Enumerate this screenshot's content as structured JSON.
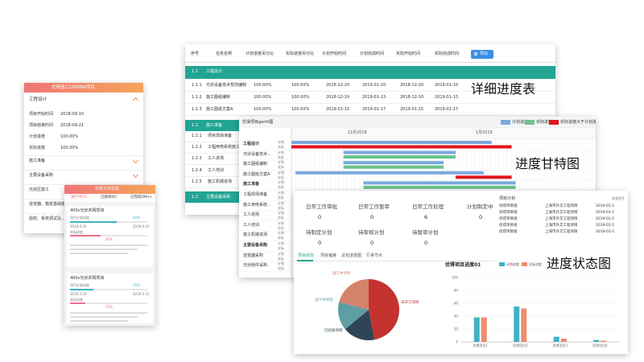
{
  "labels": {
    "table": "详细进度表",
    "gantt": "进度甘特图",
    "status": "进度状态图"
  },
  "mobile_project": {
    "title": "优得造口100MW项目",
    "section": "工程设计",
    "fields": [
      {
        "label": "项目开始时间",
        "value": "2018-09-10"
      },
      {
        "label": "项目结束时间",
        "value": "2018-09-21"
      },
      {
        "label": "计划进度",
        "value": "100.00%"
      },
      {
        "label": "实际进度",
        "value": "100.00%"
      }
    ],
    "items": [
      "施工准备",
      "主要设备采购",
      "光伏区施工",
      "逆变器、箱变基础施工",
      "验收、系统调试及..."
    ]
  },
  "mobile_work": {
    "title": "日常工作总览",
    "tabs": [
      "进行中(4)",
      "已接待(0)",
      "已完成(99+)"
    ],
    "cards": [
      {
        "title": "400v光伏并网项目",
        "plan_label": "项目计划进度",
        "plan": "60%",
        "start": "2018.8.10",
        "end": "2018.9.10",
        "actual_label": "实际进度",
        "actual": "40%"
      },
      {
        "title": "400v光伏并网项目",
        "plan_label": "项目计划进度",
        "plan": "30%",
        "start": "2019.3.10",
        "end": "2019.3.12",
        "actual_label": "实际进度",
        "actual": "20%"
      }
    ]
  },
  "table": {
    "columns": [
      "序号",
      "任务名称",
      "计划进度百分比",
      "实际进度百分比",
      "计划开始时间",
      "计划完成时间",
      "实际开始时间",
      "实际完成时间"
    ],
    "export": "导出",
    "groups": [
      {
        "id": "1.1",
        "name": "工程设计",
        "rows": [
          [
            "1.1.1",
            "光伏设备技术规范编制",
            "100.00%",
            "100.00%",
            "2018-12-20",
            "2019-01-10",
            "2018-12-20",
            "2019-01-10"
          ],
          [
            "1.1.2",
            "施工图纸编制",
            "100.00%",
            "100.00%",
            "2018-12-10",
            "2019-01-13",
            "2018-12-10",
            "2019-01-13"
          ],
          [
            "1.1.3",
            "施工图纸方案A",
            "100.00%",
            "100.00%",
            "2019-01-15",
            "2019-01-17",
            "2019-01-15",
            "2019-01-17"
          ]
        ]
      },
      {
        "id": "1.2",
        "name": "施工准备",
        "rows": [
          [
            "1.2.1",
            "项目现场准备"
          ],
          [
            "1.2.2",
            "工程用电系统施工"
          ],
          [
            "1.2.3",
            "工人进场"
          ],
          [
            "1.2.4",
            "工人培训"
          ],
          [
            "1.2.5",
            "施工机械进场"
          ]
        ]
      },
      {
        "id": "1.3",
        "name": "主要设备采购",
        "rows": []
      }
    ]
  },
  "gantt": {
    "title": "优得项目gantt图",
    "legend": [
      {
        "name": "计划进度",
        "color": "#7aa9dc"
      },
      {
        "name": "实际进度",
        "color": "#6cc38a"
      },
      {
        "name": "实际进度大于计划进度",
        "color": "#e0141e"
      }
    ],
    "months": [
      {
        "label": "12月2018",
        "day": 14
      },
      {
        "label": "1月2019",
        "day": 46
      }
    ],
    "xlim": [
      0,
      76
    ],
    "plan_label": "计划",
    "actual_label": "实际",
    "rows": [
      "工程设计",
      "光伏设备技术...",
      "施工图纸编制",
      "施工图纸方案A",
      "施工准备",
      "工程现场准备",
      "施工用电系统...",
      "工人进场",
      "工人培训",
      "施工机械进场",
      "主要设备采购",
      "逆变器采购",
      "光伏组件采购"
    ],
    "bars": [
      {
        "row": 0,
        "kind": 0,
        "start": 0,
        "end": 50
      },
      {
        "row": 0,
        "kind": 2,
        "start": 0,
        "end": 55
      },
      {
        "row": 1,
        "kind": 0,
        "start": 13,
        "end": 41
      },
      {
        "row": 1,
        "kind": 1,
        "start": 13,
        "end": 41
      },
      {
        "row": 2,
        "kind": 0,
        "start": 13,
        "end": 38
      },
      {
        "row": 2,
        "kind": 1,
        "start": 13,
        "end": 38
      },
      {
        "row": 3,
        "kind": 0,
        "start": 1,
        "end": 48
      },
      {
        "row": 3,
        "kind": 2,
        "start": 41,
        "end": 55
      },
      {
        "row": 4,
        "kind": 0,
        "start": 18,
        "end": 56
      },
      {
        "row": 4,
        "kind": 1,
        "start": 18,
        "end": 56
      },
      {
        "row": 5,
        "kind": 0,
        "start": 18,
        "end": 40
      },
      {
        "row": 5,
        "kind": 1,
        "start": 18,
        "end": 40
      }
    ]
  },
  "status": {
    "stats": [
      {
        "label": "日常工作审批",
        "value": 0
      },
      {
        "label": "日常工作暂审",
        "value": 0
      },
      {
        "label": "日常工作处理",
        "value": 6
      },
      {
        "label": "计划制定中",
        "value": 0
      },
      {
        "label": "待制定计划",
        "value": 0
      },
      {
        "label": "待审核计划",
        "value": 0
      },
      {
        "label": "待暂审计划",
        "value": 0
      }
    ],
    "tabs": [
      "项目状态",
      "项目偏差",
      "总包进度图",
      "行事节点"
    ],
    "list_title": "项目计划",
    "list_more": "查看更多",
    "list": [
      [
        "优得项目组",
        "上海市外交工程项目",
        "2019-01-1"
      ],
      [
        "优得项目组",
        "上海市外交工程项目",
        "2019-01-1"
      ],
      [
        "优得项目组",
        "上海市外交工程项目",
        "2019-01-1"
      ],
      [
        "优得项目组",
        "上海市外交工程项目",
        "2019-01-1"
      ],
      [
        "优得项目组",
        "上海市外交工程项目",
        "2019-01-1"
      ]
    ],
    "pie": {
      "type": "pie",
      "categories": [
        "未开工项目",
        "已验收项目",
        "设计中项目",
        "施工中项目"
      ],
      "values": [
        47,
        17,
        15,
        21
      ],
      "colors": [
        "#c4332f",
        "#2f4555",
        "#5f9ea3",
        "#d4826a"
      ]
    },
    "bar": {
      "type": "bar",
      "title": "优得项目进度01",
      "categories": [
        "优得项目1",
        "优得项目2",
        "优得项目3",
        "优得项目4"
      ],
      "series": [
        {
          "name": "计划进度",
          "color": "#3fb1c6",
          "values": [
            38,
            55,
            8,
            3
          ]
        },
        {
          "name": "实际进度",
          "color": "#ef8d6c",
          "values": [
            38,
            52,
            5,
            2
          ]
        }
      ],
      "ylim": [
        0,
        100
      ],
      "yticks": [
        0,
        20,
        40,
        60,
        80,
        100
      ],
      "grid": true
    }
  }
}
